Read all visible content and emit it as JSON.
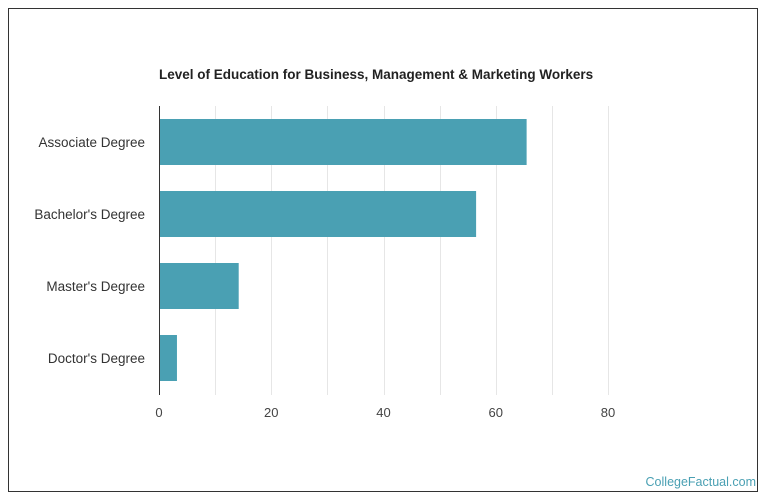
{
  "page": {
    "watermark": "CollegeFactual.com"
  },
  "chart_data": {
    "type": "bar",
    "orientation": "horizontal",
    "title": "Level of Education for Business, Management & Marketing Workers",
    "categories": [
      "Associate Degree",
      "Bachelor's Degree",
      "Master's Degree",
      "Doctor's Degree"
    ],
    "values": [
      65.5,
      56.5,
      14.2,
      3.2
    ],
    "xlabel": "",
    "ylabel": "",
    "xlim": [
      0,
      80
    ],
    "xticks": [
      0,
      20,
      40,
      60,
      80
    ],
    "grid": true,
    "bar_color": "#4aa0b3",
    "grid_color": "#e6e6e6",
    "axis_color": "#333333"
  }
}
